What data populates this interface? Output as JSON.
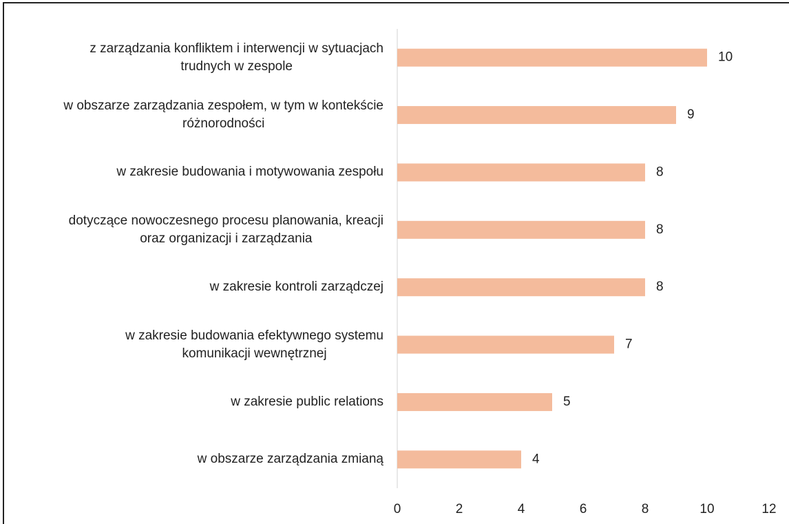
{
  "chart_data": {
    "type": "bar",
    "orientation": "horizontal",
    "categories": [
      "z zarządzania konfliktem i interwencji w sytuacjach\ntrudnych w zespole",
      "w obszarze zarządzania zespołem, w tym w kontekście\nróżnorodności",
      "w zakresie budowania i motywowania zespołu",
      "dotyczące nowoczesnego procesu planowania, kreacji\noraz organizacji i zarządzania",
      "w zakresie kontroli zarządczej",
      "w zakresie budowania efektywnego systemu\nkomunikacji wewnętrznej",
      "w zakresie public relations",
      "w obszarze zarządzania zmianą"
    ],
    "values": [
      10,
      9,
      8,
      8,
      8,
      7,
      5,
      4
    ],
    "color": "#f4bb9c",
    "xlim": [
      0,
      12
    ],
    "xticks": [
      0,
      2,
      4,
      6,
      8,
      10,
      12
    ],
    "grid": false
  }
}
